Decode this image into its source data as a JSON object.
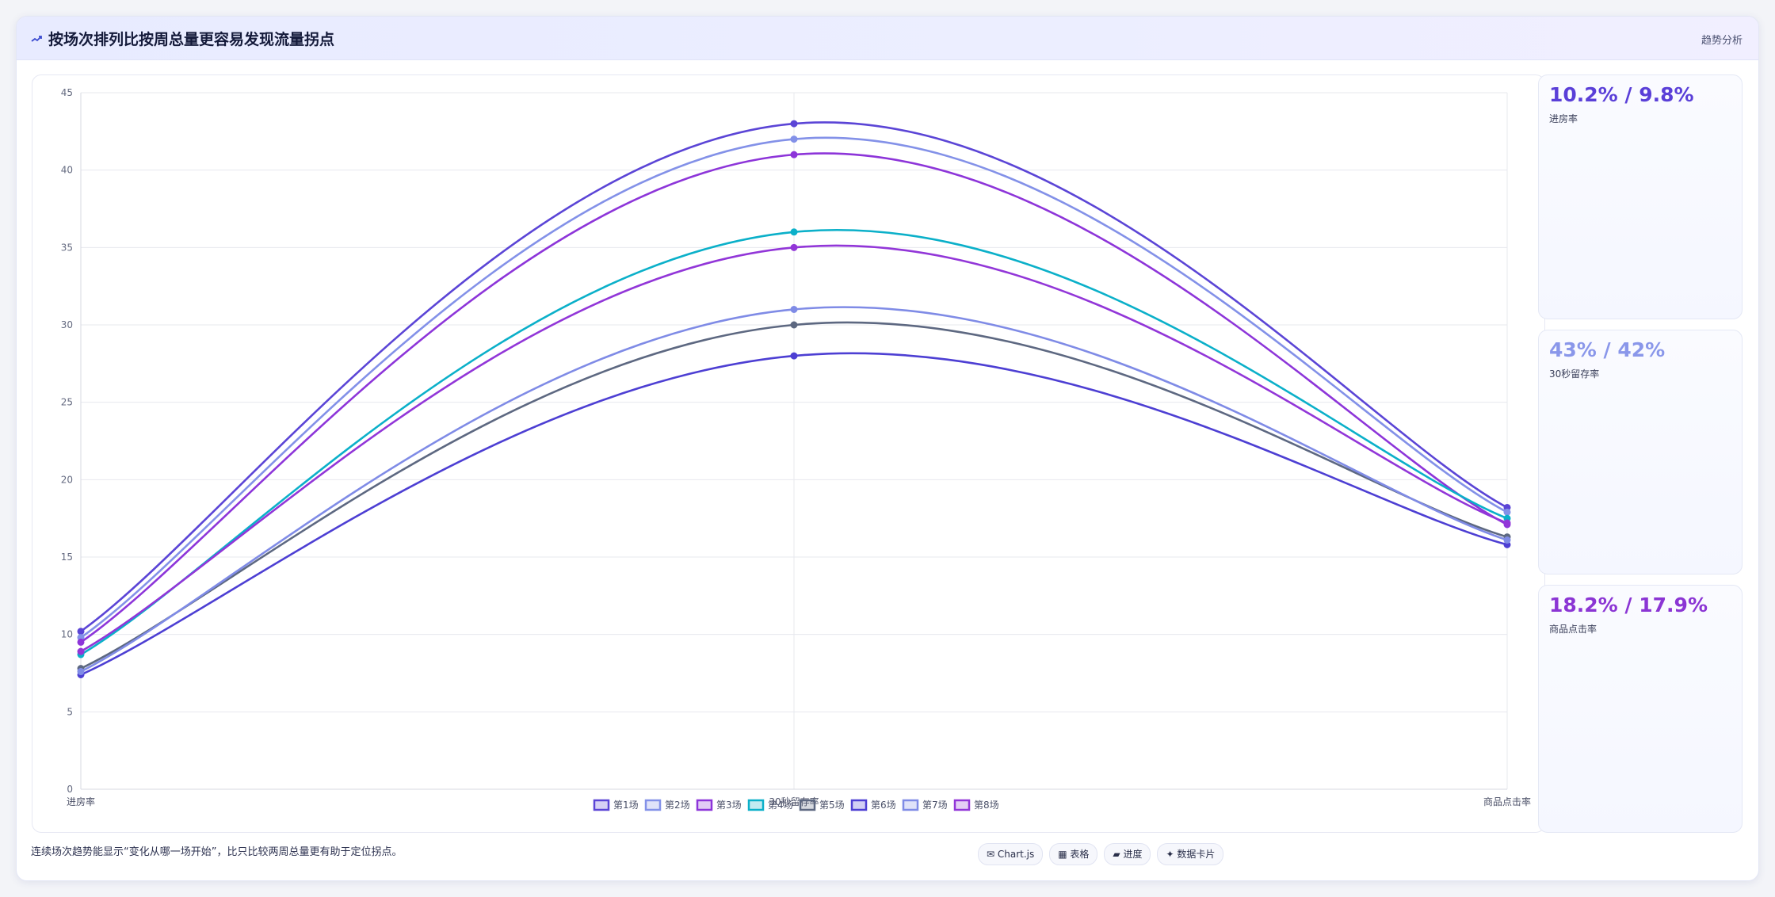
{
  "header": {
    "title": "按场次排列比按周总量更容易发现流量拐点",
    "right_label": "趋势分析"
  },
  "chart_data": {
    "type": "line",
    "categories": [
      "进房率",
      "30秒留存率",
      "商品点击率"
    ],
    "ylim": [
      0,
      45
    ],
    "yticks": [
      0,
      5,
      10,
      15,
      20,
      25,
      30,
      35,
      40,
      45
    ],
    "grid": true,
    "legend_position": "bottom",
    "series": [
      {
        "name": "第1场",
        "values": [
          10.2,
          43,
          18.2
        ],
        "color": "#5b45d6"
      },
      {
        "name": "第2场",
        "values": [
          9.8,
          42,
          17.9
        ],
        "color": "#8391e8"
      },
      {
        "name": "第3场",
        "values": [
          9.5,
          41,
          17.1
        ],
        "color": "#8d35d9"
      },
      {
        "name": "第4场",
        "values": [
          8.7,
          36,
          17.5
        ],
        "color": "#0bb0c9"
      },
      {
        "name": "第5场",
        "values": [
          7.8,
          30,
          16.3
        ],
        "color": "#5d6881"
      },
      {
        "name": "第6场",
        "values": [
          7.4,
          28,
          15.8
        ],
        "color": "#4d3fd3"
      },
      {
        "name": "第7场",
        "values": [
          7.6,
          31,
          16.1
        ],
        "color": "#7f8be6"
      },
      {
        "name": "第8场",
        "values": [
          8.9,
          35,
          17.2
        ],
        "color": "#9236d8"
      }
    ]
  },
  "cards": [
    {
      "value": "10.2% / 9.8%",
      "label": "进房率",
      "color": "#5a3fd8"
    },
    {
      "value": "43% / 42%",
      "label": "30秒留存率",
      "color": "#8a97ea"
    },
    {
      "value": "18.2% / 17.9%",
      "label": "商品点击率",
      "color": "#8b35d4"
    }
  ],
  "footer": {
    "note": "连续场次趋势能显示“变化从哪一场开始”，比只比较两周总量更有助于定位拐点。",
    "tags": [
      "✉ Chart.js",
      "▦ 表格",
      "▰ 进度",
      "✦ 数据卡片"
    ]
  }
}
